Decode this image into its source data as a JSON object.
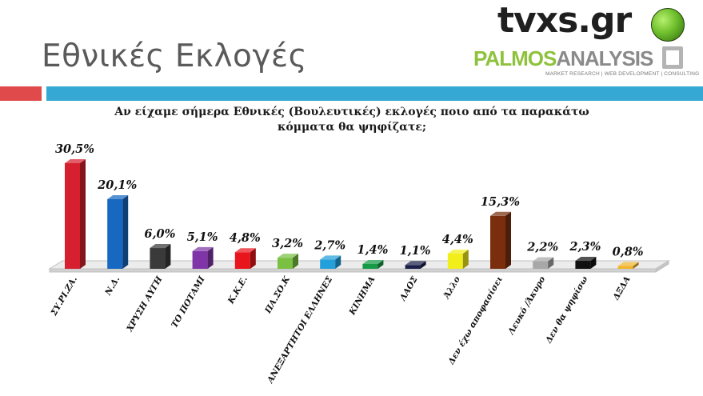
{
  "header": {
    "title": "Εθνικές Εκλογές",
    "logo_tvxs": "tvxs.gr",
    "logo_palmos_part1": "PALMOS",
    "logo_palmos_part2": "ANALYSIS",
    "logo_palmos_tagline": "MARKET RESEARCH | WEB DEVELOPMENT | CONSULTING"
  },
  "question": {
    "line1": "Αν είχαμε σήμερα Εθνικές (Βουλευτικές)  εκλογές ποιο από τα παρακάτω",
    "line2": "κόμματα θα ψηφίζατε;"
  },
  "chart_data": {
    "type": "bar",
    "title": "Αν είχαμε σήμερα Εθνικές (Βουλευτικές)  εκλογές ποιο από τα παρακάτω κόμματα θα ψηφίζατε;",
    "categories": [
      "ΣΥ.ΡΙ.ΖΑ.",
      "Ν.Δ.",
      "ΧΡΥΣΗ ΑΥΓΗ",
      "ΤΟ ΠΟΤΑΜΙ",
      "Κ.Κ.Ε.",
      "ΠΑ.ΣΟ.Κ",
      "ΑΝΕΞΑΡΤΗΤΟΙ ΕΛΛΗΝΕΣ",
      "ΚΙΝΗΜΑ",
      "ΛΑΟΣ",
      "Άλλο",
      "Δεν έχω αποφασίσει",
      "Λευκό /Άκυρο",
      "Δεν θα ψηφίσω",
      "ΔΞΔΑ"
    ],
    "values": [
      30.5,
      20.1,
      6.0,
      5.1,
      4.8,
      3.2,
      2.7,
      1.4,
      1.1,
      4.4,
      15.3,
      2.2,
      2.3,
      0.8
    ],
    "value_labels": [
      "30,5%",
      "20,1%",
      "6,0%",
      "5,1%",
      "4,8%",
      "3,2%",
      "2,7%",
      "1,4%",
      "1,1%",
      "4,4%",
      "15,3%",
      "2,2%",
      "2,3%",
      "0,8%"
    ],
    "colors": [
      "#d7202f",
      "#1668c0",
      "#3a3a3a",
      "#7f35a8",
      "#e8151c",
      "#7ac143",
      "#21a0db",
      "#169a45",
      "#1c1f4a",
      "#f2ee1a",
      "#7a2e0e",
      "#a8a8a8",
      "#111111",
      "#f0b52a"
    ],
    "ylim": [
      0,
      32
    ],
    "xlabel": "",
    "ylabel": "",
    "grid": false,
    "legend": "none"
  }
}
